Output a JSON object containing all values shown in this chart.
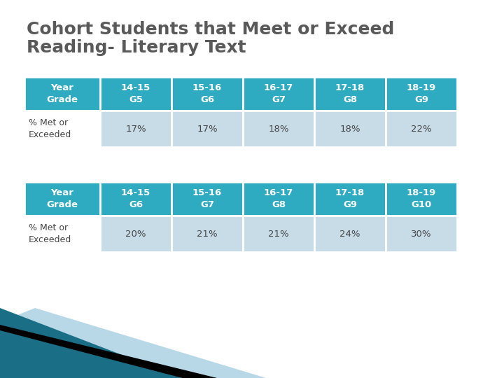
{
  "title_line1": "Cohort Students that Meet or Exceed",
  "title_line2": "Reading- Literary Text",
  "title_color": "#595959",
  "title_fontsize": 18,
  "header_bg_color": "#2EAAC1",
  "header_text_color": "#FFFFFF",
  "data_bg_color": "#C8DCE8",
  "data_text_color": "#444444",
  "first_col_data_bg": "#FFFFFF",
  "table1_headers": [
    "Year\nGrade",
    "14-15\nG5",
    "15-16\nG6",
    "16-17\nG7",
    "17-18\nG8",
    "18-19\nG9"
  ],
  "table1_data": [
    "% Met or\nExceeded",
    "17%",
    "17%",
    "18%",
    "18%",
    "22%"
  ],
  "table2_headers": [
    "Year\nGrade",
    "14-15\nG6",
    "15-16\nG7",
    "16-17\nG8",
    "17-18\nG9",
    "18-19\nG10"
  ],
  "table2_data": [
    "% Met or\nExceeded",
    "20%",
    "21%",
    "21%",
    "24%",
    "30%"
  ],
  "background_color": "#FFFFFF",
  "teal_dark": "#1A6E85",
  "teal_mid": "#2EAAC1",
  "teal_light": "#B8D8E8",
  "black_stripe": "#000000"
}
